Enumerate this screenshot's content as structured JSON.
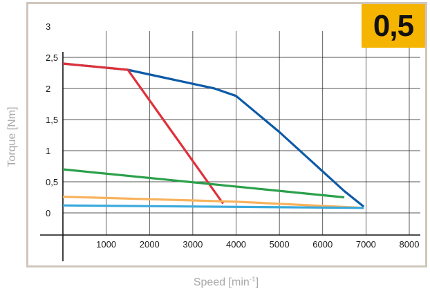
{
  "chart_data": {
    "type": "line",
    "xlabel": "Speed [min",
    "xlabel_sup": "-1",
    "xlabel_suffix": "]",
    "ylabel": "Torque [Nm]",
    "badge": "0,5",
    "x_ticks": [
      "1000",
      "2000",
      "3000",
      "4000",
      "5000",
      "6000",
      "7000",
      "8000"
    ],
    "y_ticks": [
      "0",
      "0,5",
      "1",
      "1,5",
      "2",
      "2,5",
      "3"
    ],
    "xlim": [
      0,
      8000
    ],
    "ylim": [
      0,
      3
    ],
    "grid": true,
    "series": [
      {
        "color": "#0d5aa7",
        "points": [
          [
            0,
            2.4
          ],
          [
            1500,
            2.3
          ],
          [
            2500,
            2.15
          ],
          [
            3500,
            2.0
          ],
          [
            4000,
            1.88
          ],
          [
            5000,
            1.3
          ],
          [
            6500,
            0.35
          ],
          [
            6950,
            0.1
          ]
        ]
      },
      {
        "color": "#e0303a",
        "points": [
          [
            0,
            2.4
          ],
          [
            1500,
            2.3
          ],
          [
            3700,
            0.15
          ]
        ]
      },
      {
        "color": "#2aa04a",
        "points": [
          [
            0,
            0.7
          ],
          [
            6500,
            0.25
          ]
        ]
      },
      {
        "color": "#f8b25c",
        "points": [
          [
            0,
            0.26
          ],
          [
            4000,
            0.18
          ],
          [
            6950,
            0.08
          ]
        ]
      },
      {
        "color": "#3aa9dc",
        "points": [
          [
            0,
            0.12
          ],
          [
            6950,
            0.08
          ]
        ]
      }
    ]
  }
}
